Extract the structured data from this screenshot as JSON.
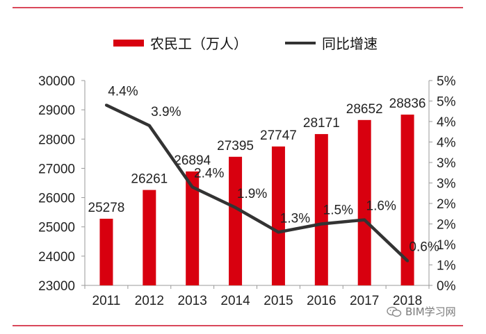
{
  "chart_data": {
    "type": "bar+line",
    "categories": [
      "2011",
      "2012",
      "2013",
      "2014",
      "2015",
      "2016",
      "2017",
      "2018"
    ],
    "series": [
      {
        "name": "农民工（万人）",
        "type": "bar",
        "axis": "left",
        "color": "#d8000f",
        "values": [
          25278,
          26261,
          26894,
          27395,
          27747,
          28171,
          28652,
          28836
        ],
        "labels": [
          "25278",
          "26261",
          "26894",
          "27395",
          "27747",
          "28171",
          "28652",
          "28836"
        ]
      },
      {
        "name": "同比增速",
        "type": "line",
        "axis": "right",
        "color": "#333333",
        "values": [
          4.4,
          3.9,
          2.4,
          1.9,
          1.3,
          1.5,
          1.6,
          0.6
        ],
        "labels": [
          "4.4%",
          "3.9%",
          "2.4%",
          "1.9%",
          "1.3%",
          "1.5%",
          "1.6%",
          "0.6%"
        ]
      }
    ],
    "y_left": {
      "ylim": [
        23000,
        30000
      ],
      "ticks": [
        30000,
        29000,
        28000,
        27000,
        26000,
        25000,
        24000,
        23000
      ],
      "tick_labels": [
        "30000",
        "29000",
        "28000",
        "27000",
        "26000",
        "25000",
        "24000",
        "23000"
      ]
    },
    "y_right": {
      "ylim": [
        0,
        5
      ],
      "tick_labels": [
        "5%",
        "5%",
        "4%",
        "4%",
        "3%",
        "3%",
        "2%",
        "2%",
        "1%",
        "1%",
        "0%"
      ]
    },
    "legend_position": "top",
    "grid": false
  },
  "watermark": {
    "icon": "wechat-icon",
    "text": "BIM学习网"
  }
}
